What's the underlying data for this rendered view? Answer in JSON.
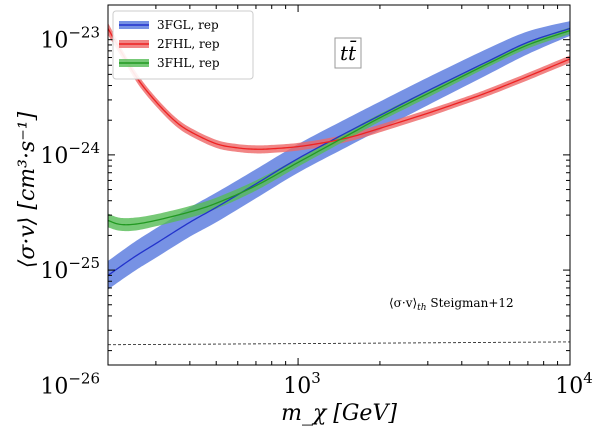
{
  "chart_data": {
    "type": "line",
    "title": "",
    "panel_label": "tt̄",
    "xlabel": "m_χ [GeV]",
    "ylabel": "⟨σ·v⟩ [cm³·s⁻¹]",
    "x_scale": "log",
    "y_scale": "log",
    "xlim": [
      200,
      10000
    ],
    "ylim": [
      1.5e-26,
      2e-23
    ],
    "x_ticks": [
      {
        "value": 1000,
        "label_base": "10",
        "label_exp": "3"
      },
      {
        "value": 10000,
        "label_base": "10",
        "label_exp": "4"
      }
    ],
    "y_ticks": [
      {
        "value": 1e-26,
        "label_base": "10",
        "label_exp": "−26"
      },
      {
        "value": 1e-25,
        "label_base": "10",
        "label_exp": "−25"
      },
      {
        "value": 1e-24,
        "label_base": "10",
        "label_exp": "−24"
      },
      {
        "value": 1e-23,
        "label_base": "10",
        "label_exp": "−23"
      }
    ],
    "grid": false,
    "legend_position": "top-left",
    "series": [
      {
        "name": "3FGL, rep",
        "color": "#2233cc",
        "band_color": "#5577dd",
        "x": [
          200,
          250,
          300,
          400,
          500,
          700,
          1000,
          1500,
          2000,
          3000,
          5000,
          7000,
          10000
        ],
        "y": [
          9e-26,
          1.3e-25,
          1.7e-25,
          2.6e-25,
          3.5e-25,
          5.6e-25,
          9.3e-25,
          1.55e-24,
          2.2e-24,
          3.6e-24,
          6.5e-24,
          9.5e-24,
          1.25e-23
        ],
        "y_low": [
          6.8e-26,
          9.8e-26,
          1.28e-25,
          1.95e-25,
          2.6e-25,
          4.2e-25,
          7e-25,
          1.16e-24,
          1.65e-24,
          2.7e-24,
          5e-24,
          7.5e-24,
          1.08e-23
        ],
        "y_high": [
          1.2e-25,
          1.75e-25,
          2.3e-25,
          3.5e-25,
          4.7e-25,
          7.5e-25,
          1.24e-24,
          2.05e-24,
          2.9e-24,
          4.7e-24,
          8.4e-24,
          1.18e-23,
          1.45e-23
        ]
      },
      {
        "name": "2FHL, rep",
        "color": "#ee2222",
        "band_color": "#ee6666",
        "x": [
          200,
          230,
          260,
          300,
          350,
          400,
          500,
          600,
          700,
          800,
          1000,
          1300,
          1600,
          2000,
          3000,
          4000,
          5000,
          7000,
          10000
        ],
        "y": [
          1.25e-23,
          7e-24,
          4.4e-24,
          2.9e-24,
          2e-24,
          1.6e-24,
          1.25e-24,
          1.15e-24,
          1.12e-24,
          1.13e-24,
          1.18e-24,
          1.3e-24,
          1.45e-24,
          1.7e-24,
          2.3e-24,
          2.9e-24,
          3.5e-24,
          4.8e-24,
          6.8e-24
        ],
        "y_low": [
          1.1e-23,
          6.4e-24,
          4e-24,
          2.65e-24,
          1.83e-24,
          1.47e-24,
          1.15e-24,
          1.06e-24,
          1.03e-24,
          1.04e-24,
          1.09e-24,
          1.2e-24,
          1.34e-24,
          1.57e-24,
          2.13e-24,
          2.7e-24,
          3.25e-24,
          4.45e-24,
          6.3e-24
        ],
        "y_high": [
          1.4e-23,
          7.6e-24,
          4.8e-24,
          3.15e-24,
          2.17e-24,
          1.73e-24,
          1.35e-24,
          1.24e-24,
          1.21e-24,
          1.22e-24,
          1.27e-24,
          1.4e-24,
          1.56e-24,
          1.83e-24,
          2.47e-24,
          3.1e-24,
          3.75e-24,
          5.15e-24,
          7.3e-24
        ]
      },
      {
        "name": "3FHL, rep",
        "color": "#229922",
        "band_color": "#55bb55",
        "x": [
          200,
          220,
          250,
          300,
          400,
          500,
          700,
          1000,
          1500,
          2000,
          3000,
          5000,
          7000,
          10000
        ],
        "y": [
          2.7e-25,
          2.5e-25,
          2.5e-25,
          2.7e-25,
          3.2e-25,
          3.8e-25,
          5.4e-25,
          8.6e-25,
          1.45e-24,
          2.1e-24,
          3.4e-24,
          6.2e-24,
          9e-24,
          1.2e-23
        ],
        "y_low": [
          2.35e-25,
          2.2e-25,
          2.2e-25,
          2.4e-25,
          2.85e-25,
          3.4e-25,
          4.9e-25,
          7.9e-25,
          1.34e-24,
          1.95e-24,
          3.15e-24,
          5.8e-24,
          8.4e-24,
          1.12e-23
        ],
        "y_high": [
          3.1e-25,
          2.85e-25,
          2.85e-25,
          3.05e-25,
          3.6e-25,
          4.25e-25,
          6e-25,
          9.4e-25,
          1.57e-24,
          2.27e-24,
          3.65e-24,
          6.6e-24,
          9.6e-24,
          1.28e-23
        ]
      },
      {
        "name": "⟨σ·v⟩th Steigman+12",
        "color": "#333333",
        "style": "dashed",
        "x": [
          200,
          1000,
          10000
        ],
        "y": [
          2.25e-26,
          2.3e-26,
          2.38e-26
        ]
      }
    ]
  },
  "annotation": {
    "relic_label_main": "⟨σ·v⟩",
    "relic_label_sub": "th",
    "relic_label_rest": " Steigman+12"
  }
}
